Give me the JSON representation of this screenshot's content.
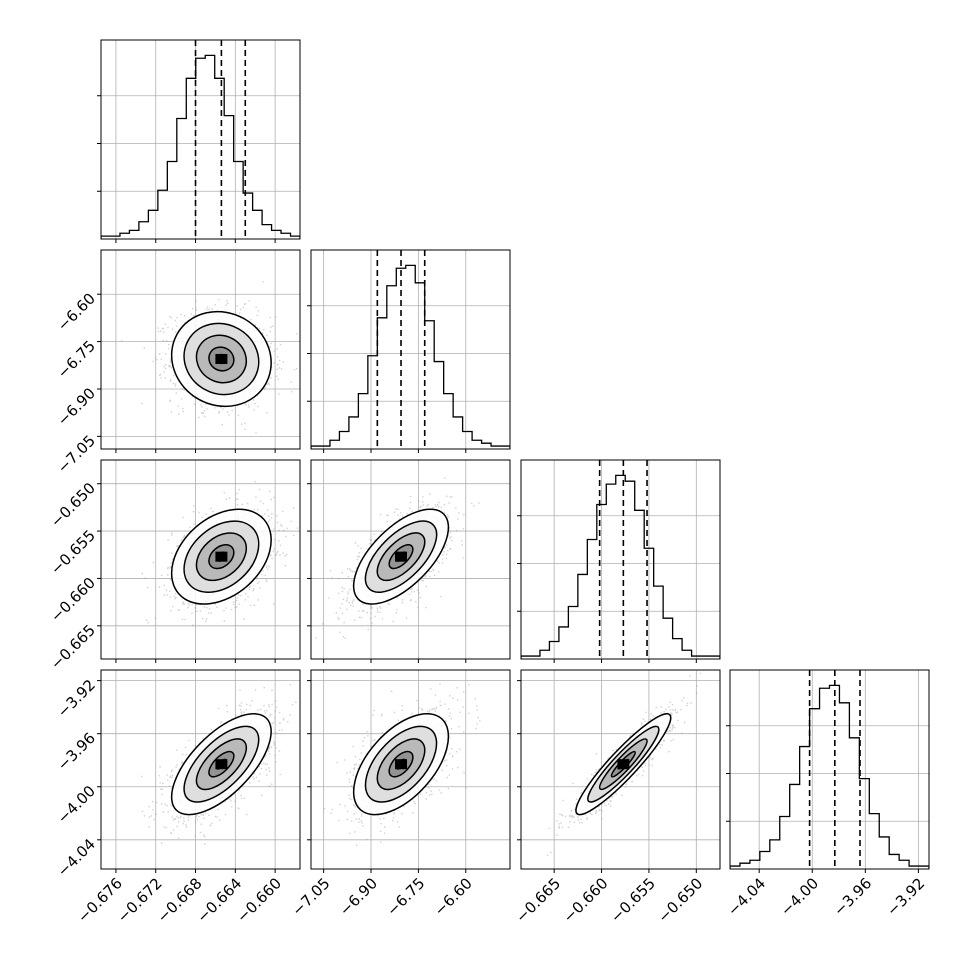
{
  "chart_data": {
    "type": "corner",
    "parameters": [
      {
        "index": 0,
        "range": [
          -0.6775,
          -0.6575
        ],
        "ticks": [
          -0.676,
          -0.672,
          -0.668,
          -0.664,
          -0.66
        ],
        "tick_labels": [
          "−0.676",
          "−0.672",
          "−0.668",
          "−0.664",
          "−0.660"
        ],
        "quantiles": [
          -0.668,
          -0.6654,
          -0.663
        ],
        "mean": -0.6654,
        "sigma": 0.0025,
        "histogram": [
          1,
          1,
          2,
          3,
          6,
          10,
          17,
          27,
          42,
          56,
          63,
          64,
          56,
          43,
          27,
          16,
          10,
          5,
          3,
          2,
          1
        ]
      },
      {
        "index": 1,
        "range": [
          -7.09,
          -6.46
        ],
        "ticks": [
          -7.05,
          -6.9,
          -6.75,
          -6.6
        ],
        "tick_labels": [
          "−7.05",
          "−6.90",
          "−6.75",
          "−6.60"
        ],
        "quantiles": [
          -6.88,
          -6.805,
          -6.73
        ],
        "mean": -6.805,
        "sigma": 0.075,
        "histogram": [
          1,
          1,
          3,
          6,
          11,
          19,
          32,
          45,
          56,
          62,
          63,
          57,
          44,
          30,
          19,
          11,
          6,
          3,
          2,
          1,
          1
        ]
      },
      {
        "index": 2,
        "range": [
          -0.6685,
          -0.6475
        ],
        "ticks": [
          -0.665,
          -0.66,
          -0.655,
          -0.65
        ],
        "tick_labels": [
          "−0.665",
          "−0.660",
          "−0.655",
          "−0.650"
        ],
        "quantiles": [
          -0.6602,
          -0.6577,
          -0.6552
        ],
        "mean": -0.6577,
        "sigma": 0.0025,
        "histogram": [
          1,
          1,
          3,
          6,
          11,
          18,
          29,
          41,
          53,
          60,
          63,
          61,
          51,
          38,
          25,
          14,
          7,
          3,
          1,
          1,
          1
        ]
      },
      {
        "index": 3,
        "range": [
          -4.062,
          -3.912
        ],
        "ticks": [
          -4.04,
          -4.0,
          -3.96,
          -3.92
        ],
        "tick_labels": [
          "−4.04",
          "−4.00",
          "−3.96",
          "−3.92"
        ],
        "quantiles": [
          -4.002,
          -3.983,
          -3.964
        ],
        "mean": -3.983,
        "sigma": 0.019,
        "histogram": [
          1,
          2,
          3,
          6,
          10,
          18,
          29,
          42,
          55,
          62,
          63,
          57,
          45,
          31,
          19,
          11,
          5,
          3,
          1,
          1
        ]
      }
    ],
    "correlations": {
      "1-0": -0.08,
      "2-0": 0.35,
      "2-1": 0.62,
      "3-0": 0.65,
      "3-1": 0.55,
      "3-2": 0.92
    },
    "contour_levels_sigma": [
      0.5,
      1.0,
      1.5,
      2.0
    ],
    "grid": true,
    "quantile_line_style": "dashed"
  }
}
